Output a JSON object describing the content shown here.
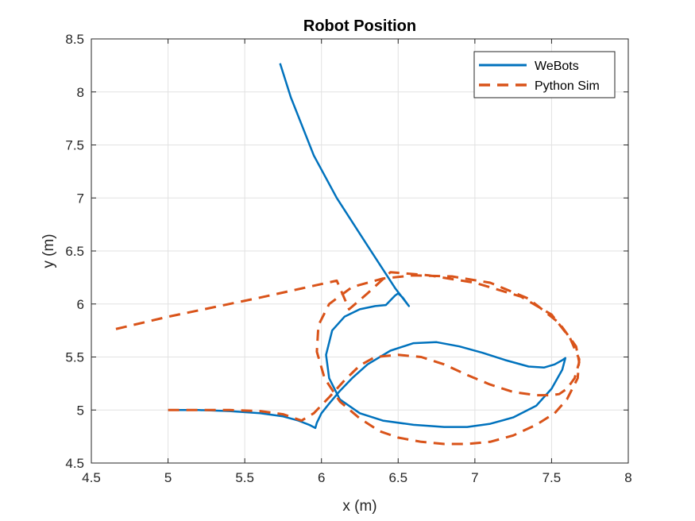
{
  "chart_data": {
    "type": "line",
    "title": "Robot Position",
    "xlabel": "x (m)",
    "ylabel": "y (m)",
    "xlim": [
      4.5,
      8
    ],
    "ylim": [
      4.5,
      8.5
    ],
    "xticks": [
      4.5,
      5,
      5.5,
      6,
      6.5,
      7,
      7.5,
      8
    ],
    "yticks": [
      4.5,
      5,
      5.5,
      6,
      6.5,
      7,
      7.5,
      8,
      8.5
    ],
    "xtick_labels": [
      "4.5",
      "5",
      "5.5",
      "6",
      "6.5",
      "7",
      "7.5",
      "8"
    ],
    "ytick_labels": [
      "4.5",
      "5",
      "5.5",
      "6",
      "6.5",
      "7",
      "7.5",
      "8",
      "8.5"
    ],
    "grid": true,
    "legend_position": "top-right",
    "series": [
      {
        "name": "WeBots",
        "color": "#0072BD",
        "style": "solid",
        "x": [
          5.0,
          5.2,
          5.4,
          5.6,
          5.75,
          5.85,
          5.92,
          5.96,
          5.97,
          6.0,
          6.05,
          6.12,
          6.2,
          6.3,
          6.45,
          6.6,
          6.75,
          6.9,
          7.05,
          7.2,
          7.35,
          7.45,
          7.52,
          7.57,
          7.59,
          7.57,
          7.5,
          7.4,
          7.25,
          7.1,
          6.95,
          6.8,
          6.6,
          6.4,
          6.25,
          6.12,
          6.05,
          6.03,
          6.07,
          6.15,
          6.25,
          6.35,
          6.42,
          6.48,
          6.5,
          6.53,
          6.57,
          6.48,
          6.3,
          6.1,
          5.95,
          5.8,
          5.73
        ],
        "y": [
          5.0,
          5.0,
          4.99,
          4.97,
          4.94,
          4.9,
          4.86,
          4.83,
          4.88,
          4.97,
          5.06,
          5.18,
          5.3,
          5.43,
          5.56,
          5.63,
          5.64,
          5.6,
          5.54,
          5.47,
          5.41,
          5.4,
          5.43,
          5.47,
          5.49,
          5.38,
          5.2,
          5.04,
          4.93,
          4.87,
          4.84,
          4.84,
          4.86,
          4.9,
          4.97,
          5.1,
          5.3,
          5.52,
          5.75,
          5.88,
          5.95,
          5.98,
          5.99,
          6.08,
          6.1,
          6.06,
          5.98,
          6.15,
          6.55,
          7.0,
          7.4,
          7.95,
          8.27
        ]
      },
      {
        "name": "Python Sim",
        "color": "#D95319",
        "style": "dashed",
        "x": [
          5.0,
          5.2,
          5.4,
          5.6,
          5.75,
          5.87,
          5.95,
          6.05,
          6.15,
          6.25,
          6.35,
          6.5,
          6.65,
          6.8,
          6.95,
          7.1,
          7.25,
          7.4,
          7.5,
          7.55,
          7.6,
          7.65,
          7.68,
          7.66,
          7.55,
          7.35,
          7.1,
          6.85,
          6.6,
          6.4,
          6.2,
          6.05,
          5.98,
          5.97,
          6.02,
          6.12,
          6.25,
          6.38,
          6.5,
          6.65,
          6.8,
          6.95,
          7.1,
          7.25,
          7.4,
          7.52,
          7.6,
          7.67,
          7.68,
          7.62,
          7.5,
          7.3,
          7.0,
          6.7,
          6.45,
          6.3,
          6.18,
          6.1,
          5.6,
          5.0,
          4.62
        ],
        "y": [
          5.0,
          5.0,
          5.0,
          4.99,
          4.96,
          4.9,
          4.97,
          5.12,
          5.28,
          5.42,
          5.5,
          5.52,
          5.5,
          5.43,
          5.33,
          5.24,
          5.17,
          5.14,
          5.14,
          5.15,
          5.2,
          5.3,
          5.45,
          5.6,
          5.82,
          6.05,
          6.2,
          6.26,
          6.27,
          6.24,
          6.16,
          6.0,
          5.8,
          5.55,
          5.3,
          5.08,
          4.92,
          4.8,
          4.74,
          4.7,
          4.68,
          4.68,
          4.7,
          4.76,
          4.86,
          4.97,
          5.1,
          5.3,
          5.48,
          5.68,
          5.9,
          6.07,
          6.2,
          6.27,
          6.3,
          6.1,
          5.95,
          6.22,
          6.06,
          5.88,
          5.75
        ]
      }
    ]
  }
}
